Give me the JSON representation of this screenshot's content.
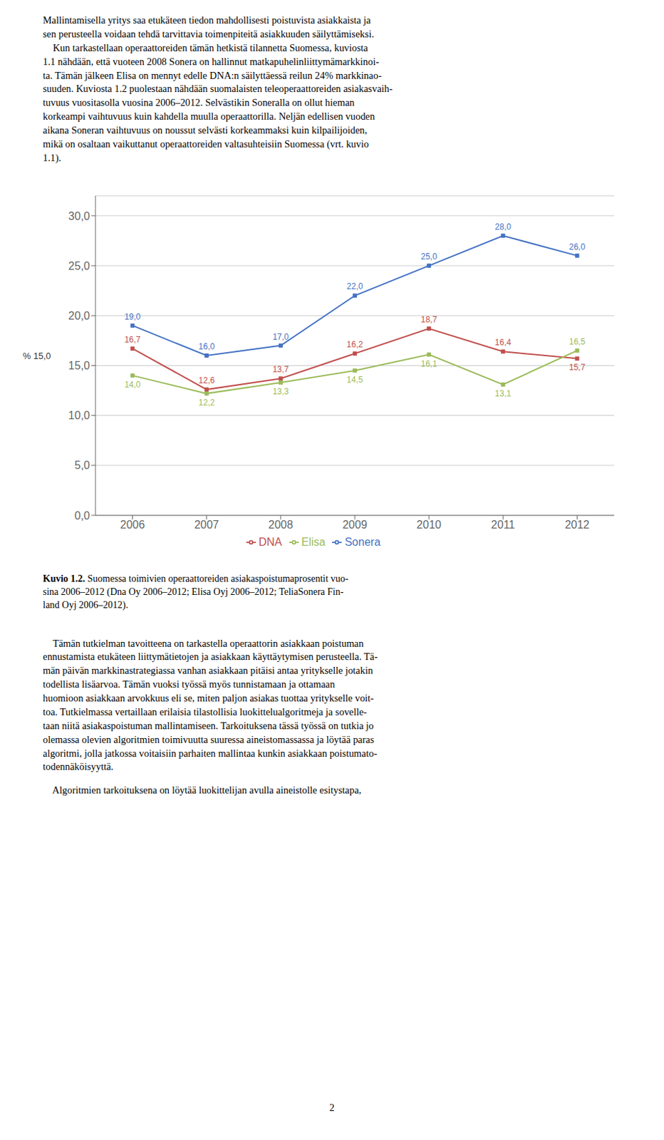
{
  "chart_data": {
    "type": "line",
    "x": [
      2006,
      2007,
      2008,
      2009,
      2010,
      2011,
      2012
    ],
    "xlim": [
      2005.5,
      2012.5
    ],
    "xticks": [
      2006,
      2007,
      2008,
      2009,
      2010,
      2011,
      2012
    ],
    "ylim": [
      0,
      32
    ],
    "yticks": [
      {
        "value": 0,
        "label": "0,0"
      },
      {
        "value": 5,
        "label": "5,0"
      },
      {
        "value": 10,
        "label": "10,0"
      },
      {
        "value": 15,
        "label": "15,0"
      },
      {
        "value": 20,
        "label": "20,0"
      },
      {
        "value": 25,
        "label": "25,0"
      },
      {
        "value": 30,
        "label": "30,0"
      }
    ],
    "ylabel": "% 15,0",
    "grid": true,
    "legend": "bottom",
    "data_labels": true,
    "marker": "square",
    "series": [
      {
        "name": "Sonera",
        "color": "#4472C4",
        "values": [
          19.0,
          16.0,
          17.0,
          22.0,
          25.0,
          28.0,
          26.0
        ],
        "value_labels": [
          "19,0",
          "16,0",
          "17,0",
          "22,0",
          "25,0",
          "28,0",
          "26,0"
        ]
      },
      {
        "name": "DNA",
        "color": "#C0504D",
        "values": [
          16.7,
          12.6,
          13.7,
          16.2,
          18.7,
          16.4,
          15.7
        ],
        "value_labels": [
          "16,7",
          "12,6",
          "13,7",
          "16,2",
          "18,7",
          "16,4",
          "15,7"
        ]
      },
      {
        "name": "Elisa",
        "color": "#9BBB59",
        "values": [
          14.0,
          12.2,
          13.3,
          14.5,
          16.1,
          13.1,
          16.5
        ],
        "value_labels": [
          "14,0",
          "12,2",
          "13,3",
          "14,5",
          "16,1",
          "13,1",
          "16,5"
        ]
      }
    ],
    "annotations": [
      "Mallintamisella yritys saa etukäteen tiedon mahdollisesti poistuvista asiakkaista ja\nsen perusteella voidaan tehdä tarvittavia toimenpiteitä asiakkuuden säilyttämiseksi.\n    Kun tarkastellaan operaattoreiden tämän hetkistä tilannetta Suomessa, kuviosta\n1.1 nähdään, että vuoteen 2008 Sonera on hallinnut matkapuhelinliittymämarkkinoi-\nta. Tämän jälkeen Elisa on mennyt edelle DNA:n säilyttäessä reilun 24% markkinao-\nsuuden. Kuviosta 1.2 puolestaan nähdään suomalaisten teleoperaattoreiden asiakasvaih-\ntuvuus vuositasolla vuosina 2006–2012. Selvästikin Soneralla on ollut hieman\nkorkeampi vaihtuvuus kuin kahdella muulla operaattorilla. Neljän edellisen vuoden\naikana Soneran vaihtuvuus on noussut selvästi korkeammaksi kuin kilpailijoiden,\nmikä on osaltaan vaikuttanut operaattoreiden valtasuhteisiin Suomessa (vrt. kuvio\n1.1).",
      "Kuvio 1.2.",
      " Suomessa toimivien operaattoreiden asiakaspoistumaprosentit vuo-\nsina 2006–2012 (Dna Oy 2006–2012; Elisa Oyj 2006–2012; TeliaSonera Fin-\nland Oyj 2006–2012).",
      "    Tämän tutkielman tavoitteena on tarkastella operaattorin asiakkaan poistuman\nennustamista etukäteen liittymätietojen ja asiakkaan käyttäytymisen perusteella. Tä-\nmän päivän markkinastrategiassa vanhan asiakkaan pitäisi antaa yritykselle jotakin\ntodellista lisäarvoa. Tämän vuoksi työssä myös tunnistamaan ja ottamaan\nhuomioon asiakkaan arvokkuus eli se, miten paljon asiakas tuottaa yritykselle voit-\ntoa. Tutkielmassa vertaillaan erilaisia tilastollisia luokittelualgoritmeja ja sovelle-\ntaan niitä asiakaspoistuman mallintamiseen. Tarkoituksena tässä työssä on tutkia jo\nolemassa olevien algoritmien toimivuutta suuressa aineistomassassa ja löytää paras\nalgoritmi, jolla jatkossa voitaisiin parhaiten mallintaa kunkin asiakkaan poistumato-\ntodennäköisyyttä.",
      "    Algoritmien tarkoituksena on löytää luokittelijan avulla aineistolle esitystapa,",
      "2"
    ]
  }
}
